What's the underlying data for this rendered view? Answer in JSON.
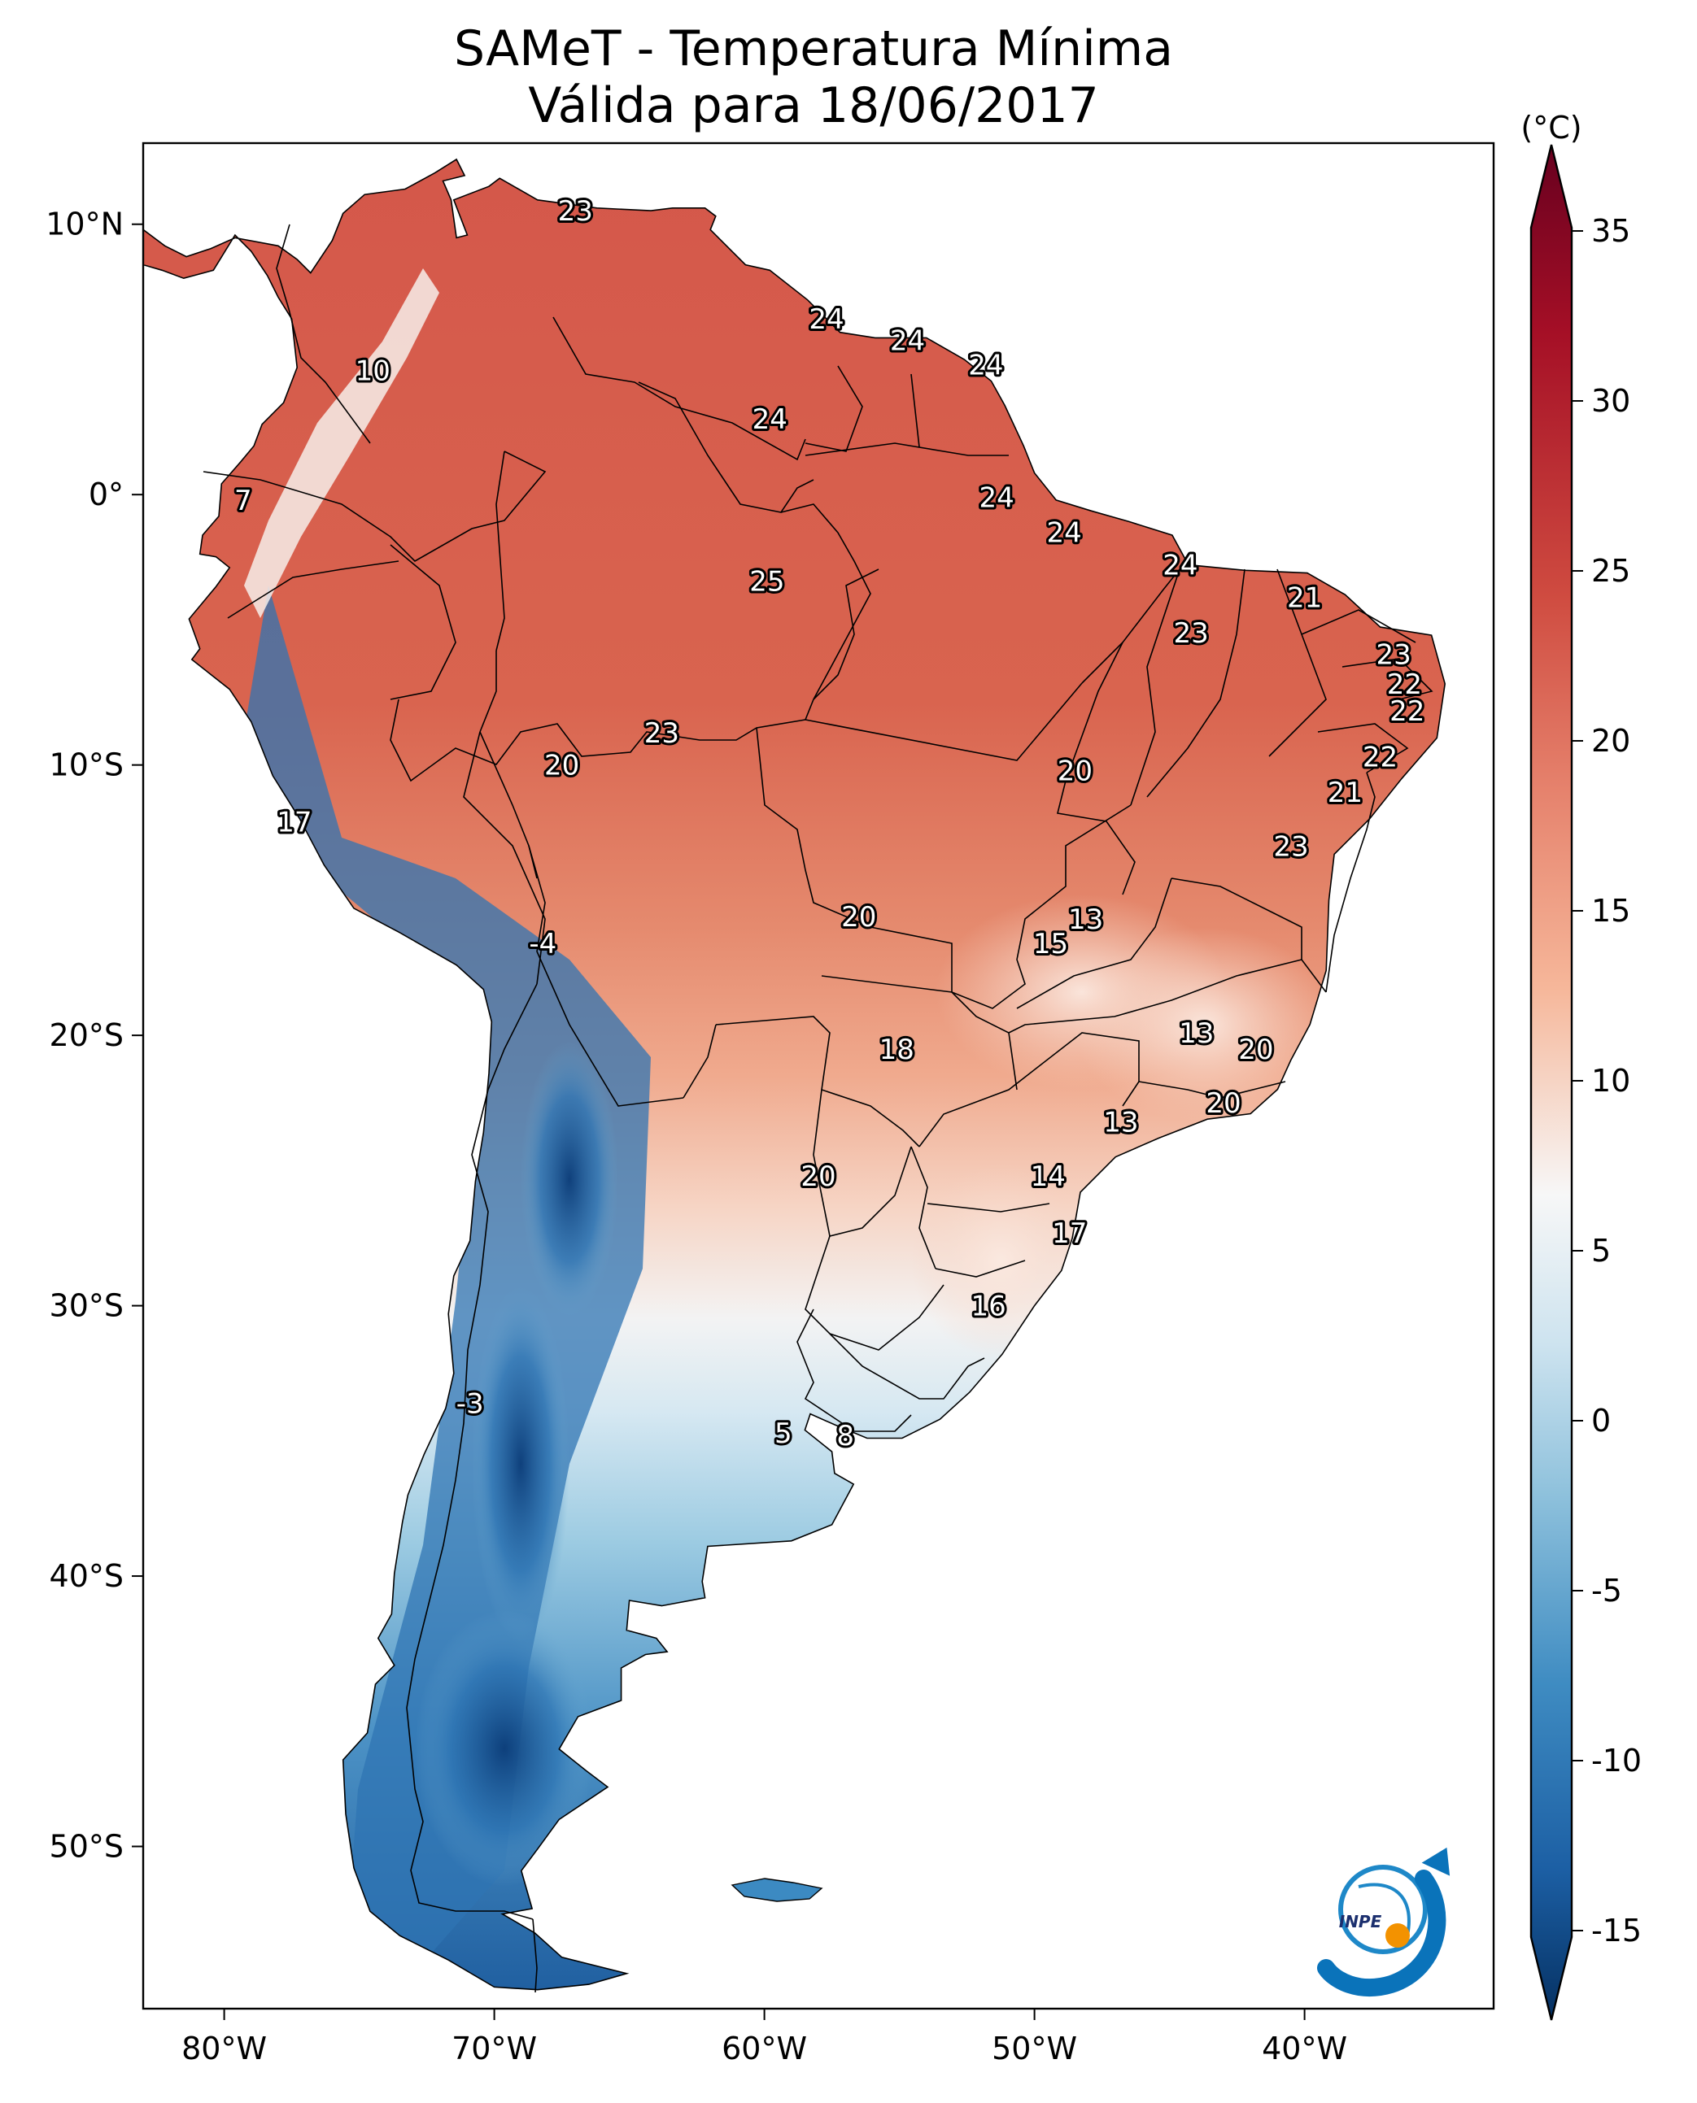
{
  "title": {
    "line1": "SAMeT - Temperatura Mínima",
    "line2": "Válida para 18/06/2017"
  },
  "map": {
    "lon_ticks": [
      "80°W",
      "70°W",
      "60°W",
      "50°W",
      "40°W"
    ],
    "lat_ticks": [
      "10°N",
      "0°",
      "10°S",
      "20°S",
      "30°S",
      "40°S",
      "50°S"
    ],
    "contour_labels": [
      {
        "text": "23",
        "lon": -67.0,
        "lat": 10.5
      },
      {
        "text": "24",
        "lon": -57.7,
        "lat": 6.5
      },
      {
        "text": "24",
        "lon": -54.7,
        "lat": 5.7
      },
      {
        "text": "24",
        "lon": -51.8,
        "lat": 4.8
      },
      {
        "text": "24",
        "lon": -59.8,
        "lat": 2.8
      },
      {
        "text": "10",
        "lon": -74.5,
        "lat": 4.6
      },
      {
        "text": "7",
        "lon": -79.3,
        "lat": -0.2
      },
      {
        "text": "24",
        "lon": -51.4,
        "lat": -0.1
      },
      {
        "text": "24",
        "lon": -48.9,
        "lat": -1.4
      },
      {
        "text": "24",
        "lon": -44.6,
        "lat": -2.6
      },
      {
        "text": "25",
        "lon": -59.9,
        "lat": -3.2
      },
      {
        "text": "21",
        "lon": -40.0,
        "lat": -3.8
      },
      {
        "text": "23",
        "lon": -44.2,
        "lat": -5.1
      },
      {
        "text": "23",
        "lon": -36.7,
        "lat": -5.9
      },
      {
        "text": "22",
        "lon": -36.3,
        "lat": -7.0
      },
      {
        "text": "22",
        "lon": -36.2,
        "lat": -8.0
      },
      {
        "text": "23",
        "lon": -63.8,
        "lat": -8.8
      },
      {
        "text": "20",
        "lon": -67.5,
        "lat": -10.0
      },
      {
        "text": "22",
        "lon": -37.2,
        "lat": -9.7
      },
      {
        "text": "20",
        "lon": -48.5,
        "lat": -10.2
      },
      {
        "text": "21",
        "lon": -38.5,
        "lat": -11.0
      },
      {
        "text": "17",
        "lon": -77.4,
        "lat": -12.1
      },
      {
        "text": "23",
        "lon": -40.5,
        "lat": -13.0
      },
      {
        "text": "20",
        "lon": -56.5,
        "lat": -15.6
      },
      {
        "text": "13",
        "lon": -48.1,
        "lat": -15.7
      },
      {
        "text": "15",
        "lon": -49.4,
        "lat": -16.6
      },
      {
        "text": "-4",
        "lon": -68.2,
        "lat": -16.6
      },
      {
        "text": "13",
        "lon": -44.0,
        "lat": -19.9
      },
      {
        "text": "20",
        "lon": -41.8,
        "lat": -20.5
      },
      {
        "text": "18",
        "lon": -55.1,
        "lat": -20.5
      },
      {
        "text": "20",
        "lon": -43.0,
        "lat": -22.5
      },
      {
        "text": "13",
        "lon": -46.8,
        "lat": -23.2
      },
      {
        "text": "20",
        "lon": -58.0,
        "lat": -25.2
      },
      {
        "text": "14",
        "lon": -49.5,
        "lat": -25.2
      },
      {
        "text": "17",
        "lon": -48.7,
        "lat": -27.3
      },
      {
        "text": "16",
        "lon": -51.7,
        "lat": -30.0
      },
      {
        "text": "-3",
        "lon": -70.9,
        "lat": -33.6
      },
      {
        "text": "5",
        "lon": -59.3,
        "lat": -34.7
      },
      {
        "text": "8",
        "lon": -57.0,
        "lat": -34.8
      }
    ]
  },
  "colorbar": {
    "unit": "(°C)",
    "ticks": [
      "35",
      "30",
      "25",
      "20",
      "15",
      "10",
      "5",
      "0",
      "-5",
      "-10",
      "-15"
    ]
  },
  "logo": {
    "text": "INPE"
  },
  "colors": {
    "max": "#67001f",
    "warm": "#d6604d",
    "mild": "#f4a582",
    "neutral": "#f7f7f7",
    "cool": "#92c5de",
    "cold": "#2166ac",
    "min": "#053061"
  }
}
